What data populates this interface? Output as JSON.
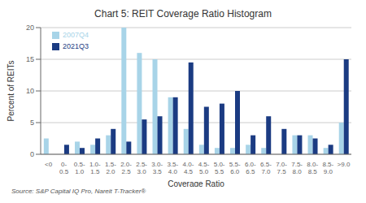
{
  "chart_data": {
    "type": "bar",
    "title": "Chart 5: REIT Coverage Ratio Histogram",
    "xlabel": "Coverage Ratio",
    "ylabel": "Percent of REITs",
    "annotations": [
      "Source: S&P Capital IQ Pro, Nareit T-Tracker®"
    ],
    "categories": [
      "<0",
      "0-\n0.5",
      "0.5-\n1.0",
      "1.0-\n1.5",
      "1.5-\n2.0",
      "2.0-\n2.5",
      "2.5-\n3.0",
      "3.0-\n3.5",
      "3.5-\n4.0",
      "4.0-\n4.5",
      "4.5-\n5.0",
      "5.0-\n5.5",
      "5.5-\n6.0",
      "6.0-\n6.5",
      "6.5-\n7.0",
      "7.0-\n7.5",
      "7.5-\n8.0",
      "8.0-\n8.5",
      "8.5-\n9.0",
      ">9.0"
    ],
    "series": [
      {
        "name": "2007Q4",
        "color": "#a8d4e8",
        "values": [
          2.5,
          0.0,
          2.0,
          1.5,
          3.0,
          20.0,
          16.0,
          15.0,
          9.0,
          4.0,
          1.5,
          1.0,
          1.0,
          1.5,
          1.0,
          0.0,
          3.0,
          3.0,
          1.0,
          5.0
        ]
      },
      {
        "name": "2021Q3",
        "color": "#1b3b82",
        "values": [
          0.0,
          1.5,
          1.0,
          2.5,
          4.0,
          2.0,
          5.5,
          6.0,
          9.0,
          14.5,
          7.5,
          8.0,
          10.0,
          3.0,
          6.0,
          4.0,
          3.0,
          2.5,
          1.5,
          15.0
        ]
      }
    ],
    "ylim": [
      0,
      20
    ],
    "yticks": [
      0,
      5,
      10,
      15,
      20
    ],
    "grid": true,
    "legend": "upper left"
  }
}
